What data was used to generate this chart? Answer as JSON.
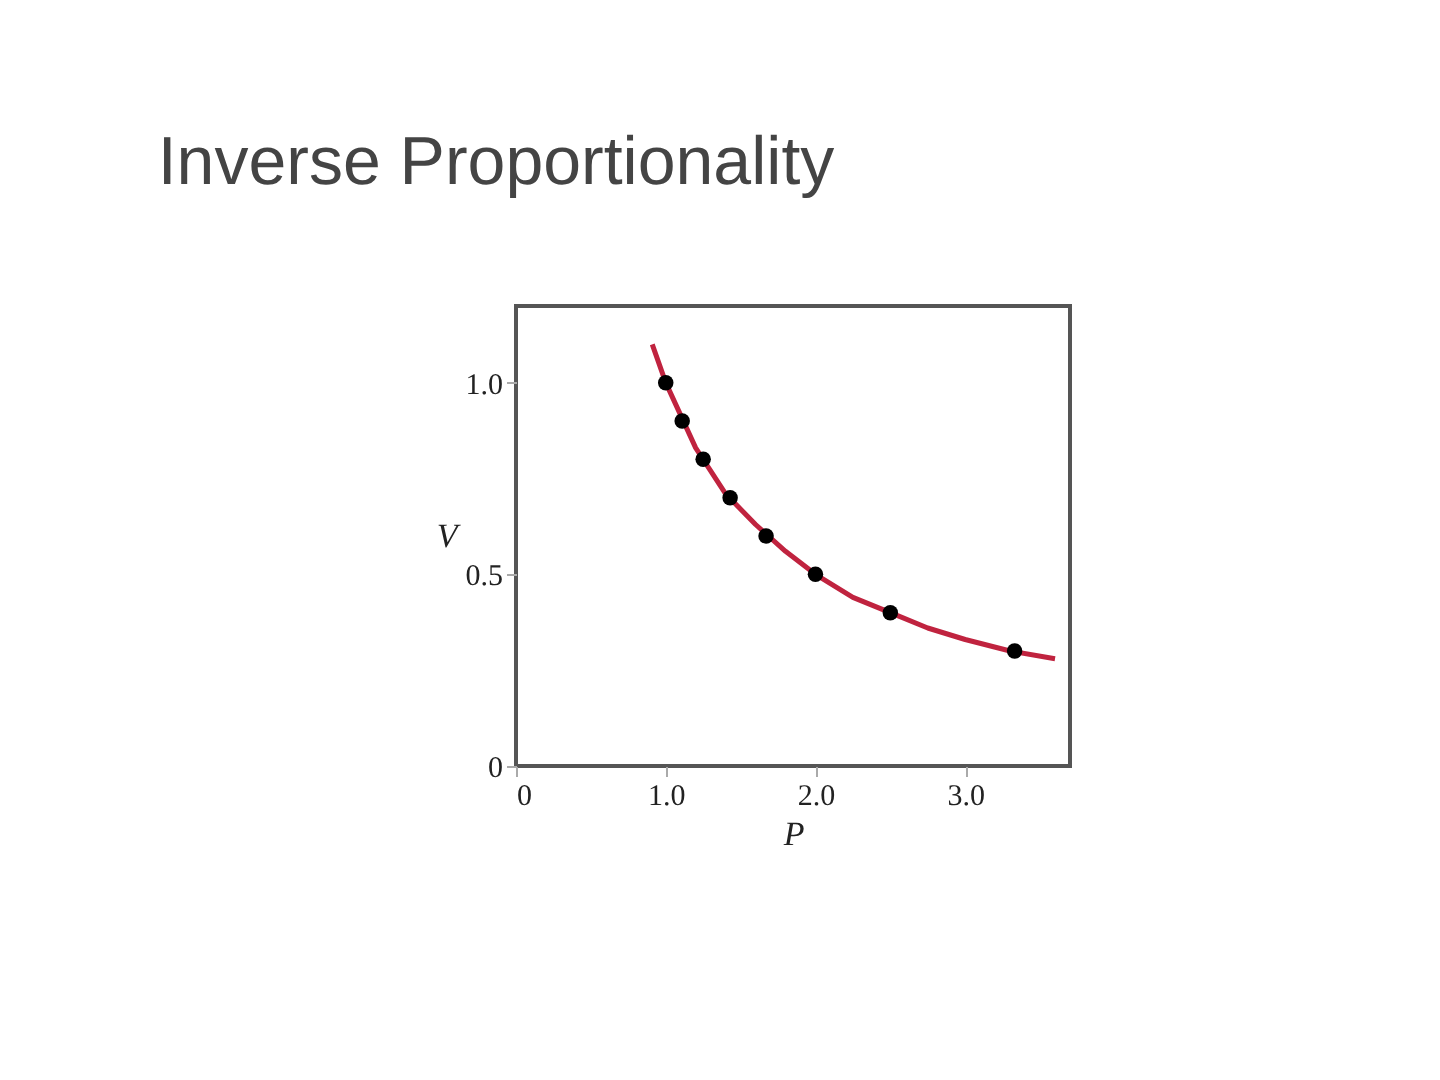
{
  "chart_data": {
    "type": "scatter",
    "title": "Inverse Proportionality",
    "xlabel": "P",
    "ylabel": "V",
    "xlim": [
      0,
      3.7
    ],
    "ylim": [
      0,
      1.2
    ],
    "xticks": [
      0,
      {
        "value": 1,
        "label": "1.0"
      },
      {
        "value": 2,
        "label": "2.0"
      },
      {
        "value": 3,
        "label": "3.0"
      }
    ],
    "yticks": [
      0,
      0.5,
      {
        "value": 1,
        "label": "1.0"
      }
    ],
    "grid": false,
    "legend": false,
    "series": [
      {
        "type": "line",
        "color": "#c0233f",
        "x": [
          0.91,
          1.0,
          1.2,
          1.4,
          1.6,
          1.8,
          2.0,
          2.25,
          2.5,
          2.75,
          3.0,
          3.3,
          3.6
        ],
        "values": [
          1.1,
          1.0,
          0.83,
          0.71,
          0.63,
          0.56,
          0.5,
          0.44,
          0.4,
          0.36,
          0.33,
          0.3,
          0.28
        ]
      },
      {
        "type": "scatter",
        "marker": "circle",
        "color": "#000000",
        "x": [
          1.0,
          1.11,
          1.25,
          1.43,
          1.67,
          2.0,
          2.5,
          3.33
        ],
        "values": [
          1.0,
          0.9,
          0.8,
          0.7,
          0.6,
          0.5,
          0.4,
          0.3
        ]
      }
    ]
  }
}
